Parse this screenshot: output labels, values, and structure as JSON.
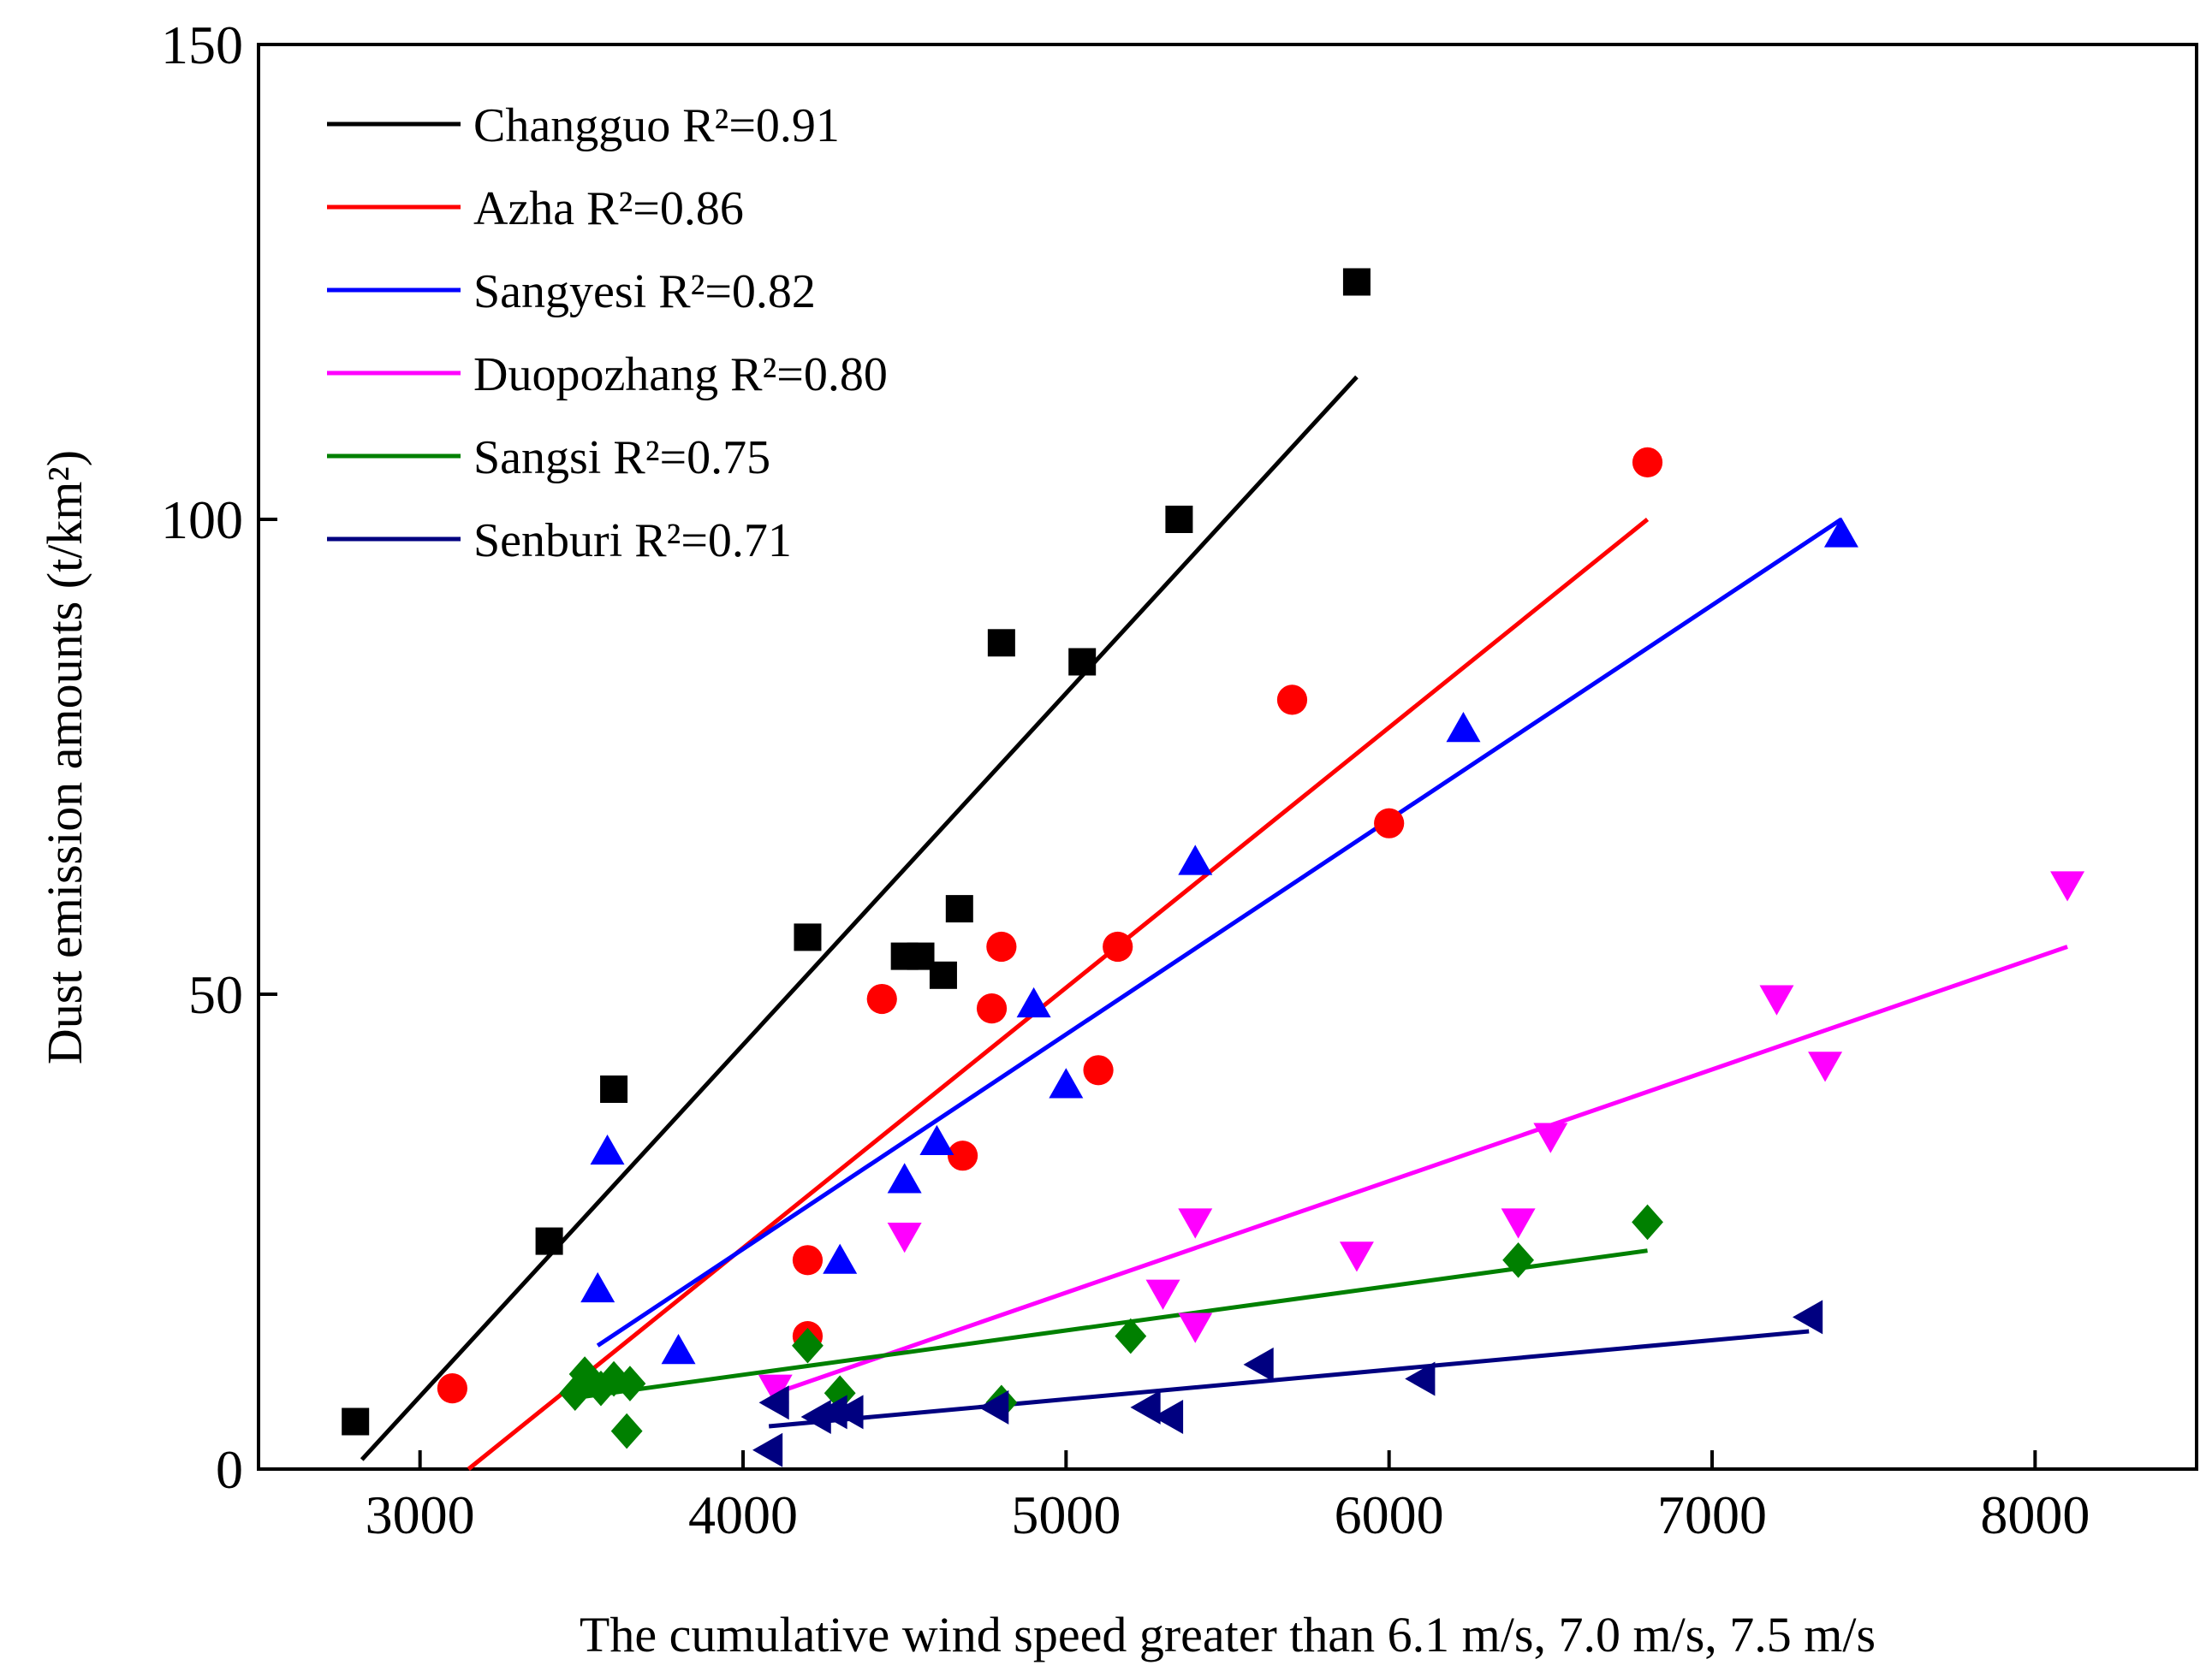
{
  "chart_data": {
    "type": "scatter",
    "title": "",
    "xlabel": "The cumulative wind speed greater than 6.1 m/s, 7.0 m/s, 7.5 m/s",
    "ylabel": "Dust emission  amounts (t/km²)",
    "xlim": [
      2500,
      8500
    ],
    "ylim": [
      0,
      150
    ],
    "xticks": [
      3000,
      4000,
      5000,
      6000,
      7000,
      8000
    ],
    "yticks": [
      0,
      50,
      100,
      150
    ],
    "legend_position": "top-left",
    "grid": false,
    "series": [
      {
        "name": "Changguo",
        "r2_text": "R²=0.91",
        "color": "#000000",
        "marker": "square",
        "points": [
          [
            2800,
            5
          ],
          [
            3400,
            24
          ],
          [
            3600,
            40
          ],
          [
            4200,
            56
          ],
          [
            4500,
            54
          ],
          [
            4550,
            54
          ],
          [
            4620,
            52
          ],
          [
            4670,
            59
          ],
          [
            4800,
            87
          ],
          [
            5050,
            85
          ],
          [
            5350,
            100
          ],
          [
            5900,
            125
          ]
        ],
        "fit": [
          [
            2820,
            1
          ],
          [
            5900,
            115
          ]
        ]
      },
      {
        "name": "Azha",
        "r2_text": "R²=0.86",
        "color": "#ff0000",
        "marker": "circle",
        "points": [
          [
            3100,
            8.5
          ],
          [
            4200,
            14
          ],
          [
            4200,
            22
          ],
          [
            4430,
            49.5
          ],
          [
            4680,
            33
          ],
          [
            4770,
            48.5
          ],
          [
            4800,
            55
          ],
          [
            5100,
            42
          ],
          [
            5160,
            55
          ],
          [
            5700,
            81
          ],
          [
            6000,
            68
          ],
          [
            6800,
            106
          ]
        ],
        "fit": [
          [
            3150,
            0
          ],
          [
            6800,
            100
          ]
        ]
      },
      {
        "name": "Sangyesi",
        "r2_text": "R²=0.82",
        "color": "#0000ff",
        "marker": "triangle-up",
        "points": [
          [
            3550,
            19
          ],
          [
            3580,
            33.5
          ],
          [
            3800,
            12.5
          ],
          [
            4300,
            22
          ],
          [
            4500,
            30.5
          ],
          [
            4600,
            34.5
          ],
          [
            4900,
            49
          ],
          [
            5000,
            40.5
          ],
          [
            5400,
            64
          ],
          [
            6230,
            78
          ],
          [
            7400,
            98.5
          ]
        ],
        "fit": [
          [
            3550,
            13
          ],
          [
            7400,
            100
          ]
        ]
      },
      {
        "name": "Duopozhang",
        "r2_text": "R²=0.80",
        "color": "#ff00ff",
        "marker": "triangle-down",
        "points": [
          [
            4100,
            8.5
          ],
          [
            4500,
            24.5
          ],
          [
            5300,
            18.5
          ],
          [
            5400,
            15
          ],
          [
            5400,
            26
          ],
          [
            5900,
            22.5
          ],
          [
            6400,
            26
          ],
          [
            6500,
            35
          ],
          [
            7200,
            49.5
          ],
          [
            7350,
            42.5
          ],
          [
            8100,
            61.5
          ]
        ],
        "fit": [
          [
            4100,
            8
          ],
          [
            8100,
            55
          ]
        ]
      },
      {
        "name": "Sangsi",
        "r2_text": "R²=0.75",
        "color": "#008000",
        "marker": "diamond",
        "points": [
          [
            3480,
            8
          ],
          [
            3510,
            10
          ],
          [
            3560,
            8.5
          ],
          [
            3600,
            9.5
          ],
          [
            3640,
            4
          ],
          [
            3650,
            9
          ],
          [
            4200,
            13
          ],
          [
            4300,
            8
          ],
          [
            4800,
            7
          ],
          [
            5200,
            14
          ],
          [
            6400,
            22
          ],
          [
            6800,
            26
          ]
        ],
        "fit": [
          [
            3480,
            7.5
          ],
          [
            6800,
            23
          ]
        ]
      },
      {
        "name": "Senburi",
        "r2_text": "R²=0.71",
        "color": "#000080",
        "marker": "triangle-left",
        "points": [
          [
            4080,
            2
          ],
          [
            4100,
            7
          ],
          [
            4230,
            5.5
          ],
          [
            4280,
            6
          ],
          [
            4330,
            6
          ],
          [
            4780,
            6.5
          ],
          [
            5250,
            6.5
          ],
          [
            5320,
            5.5
          ],
          [
            5600,
            11
          ],
          [
            6100,
            9.5
          ],
          [
            7300,
            16
          ]
        ],
        "fit": [
          [
            4080,
            4.5
          ],
          [
            7300,
            14.5
          ]
        ]
      }
    ]
  }
}
